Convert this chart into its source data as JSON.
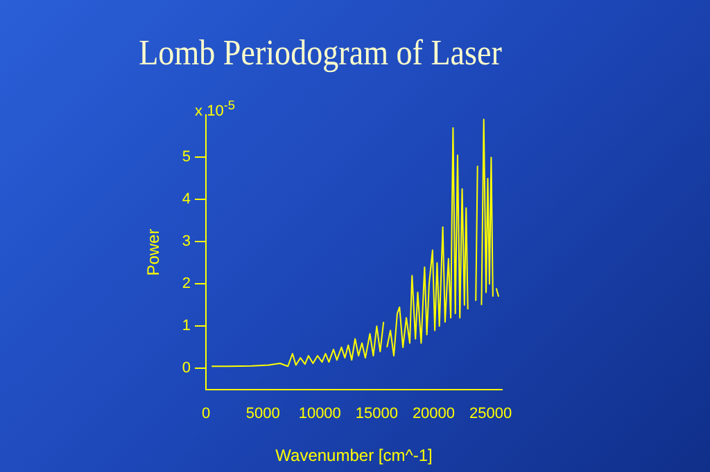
{
  "chart_data": {
    "type": "line",
    "title": "Lomb Periodogram of Laser",
    "xlabel": "Wavenumber [cm^-1]",
    "ylabel": "Power",
    "annotations": [
      "x 10$^{-5}$"
    ],
    "x": [
      500,
      2000,
      4000,
      5500,
      6500,
      7200,
      7600,
      7900,
      8300,
      8700,
      9000,
      9400,
      9800,
      10200,
      10500,
      10800,
      11200,
      11500,
      11900,
      12200,
      12500,
      12800,
      13100,
      13400,
      13700,
      14000,
      14400,
      14700,
      15000,
      15300,
      15600,
      15750,
      15900,
      16200,
      16500,
      16800,
      17000,
      17300,
      17600,
      17900,
      18100,
      18400,
      18600,
      18900,
      19200,
      19400,
      19600,
      19900,
      20100,
      20300,
      20500,
      20800,
      21000,
      21300,
      21500,
      21700,
      21900,
      22100,
      22300,
      22500,
      22700,
      22850,
      23000,
      23200,
      23500,
      23700,
      23850,
      24000,
      24200,
      24400,
      24600,
      24750,
      24900,
      25050,
      25200,
      25350,
      25500,
      25700
    ],
    "series": [
      {
        "color": "#ffff00",
        "values": [
          0.05,
          0.05,
          0.06,
          0.08,
          0.12,
          0.05,
          0.35,
          0.08,
          0.25,
          0.1,
          0.3,
          0.12,
          0.3,
          0.15,
          0.35,
          0.15,
          0.45,
          0.2,
          0.5,
          0.25,
          0.55,
          0.2,
          0.7,
          0.3,
          0.6,
          0.25,
          0.82,
          0.3,
          1.0,
          0.4,
          1.1,
          null,
          0.5,
          0.9,
          0.3,
          1.3,
          1.45,
          0.5,
          1.2,
          0.6,
          2.2,
          0.7,
          1.8,
          0.6,
          2.4,
          0.8,
          2.0,
          2.8,
          0.9,
          2.5,
          1.0,
          3.35,
          1.1,
          2.6,
          1.2,
          5.7,
          1.3,
          5.05,
          1.2,
          4.25,
          1.5,
          3.8,
          1.4,
          null,
          null,
          1.6,
          4.8,
          null,
          1.5,
          5.9,
          1.8,
          4.5,
          2.0,
          5,
          1.7,
          null,
          1.9,
          1.7
        ]
      }
    ],
    "xlim": [
      0,
      26000
    ],
    "xticks": [
      0,
      5000,
      10000,
      15000,
      20000,
      25000
    ],
    "ylim": [
      -0.5,
      6
    ],
    "yticks": [
      0,
      1,
      2,
      3,
      4,
      5
    ],
    "grid": false,
    "legend": false,
    "marker": "none",
    "line_style": "solid"
  }
}
